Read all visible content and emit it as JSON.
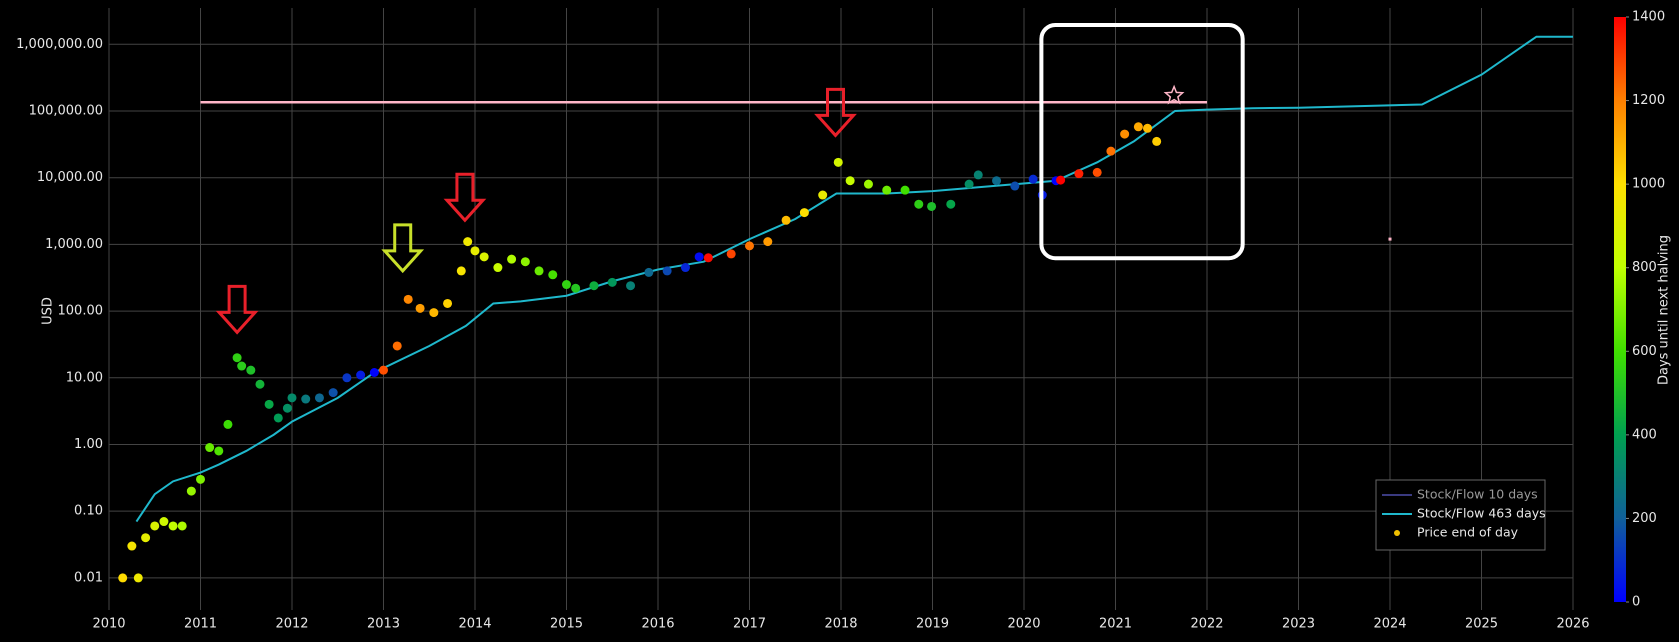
{
  "chart_data": {
    "type": "scatter",
    "y_label": "USD",
    "log_y": true,
    "grid": true,
    "legend": "bottom-right",
    "xlim": [
      2010,
      2026
    ],
    "xticks": [
      2010,
      2011,
      2012,
      2013,
      2014,
      2015,
      2016,
      2017,
      2018,
      2019,
      2020,
      2021,
      2022,
      2023,
      2024,
      2025,
      2026
    ],
    "ylim": [
      0.0033,
      3500000
    ],
    "yticks": [
      0.01,
      {
        "value": 0.1,
        "label": "0.10"
      },
      {
        "value": 1,
        "label": "1.00"
      },
      {
        "value": 10,
        "label": "10.00"
      },
      {
        "value": 100,
        "label": "100.00"
      },
      {
        "value": 1000,
        "label": "1,000.00"
      },
      {
        "value": 10000,
        "label": "10,000.00"
      },
      {
        "value": 100000,
        "label": "100,000.00"
      },
      {
        "value": 1000000,
        "label": "1,000,000.00"
      }
    ],
    "colorbar": {
      "title": "Days until next halving",
      "range": [
        0,
        1400
      ],
      "ticks": [
        0,
        200,
        400,
        600,
        800,
        1000,
        1200,
        1400
      ],
      "colorscale": [
        [
          0,
          "#0000ff"
        ],
        [
          200,
          "#10609a"
        ],
        [
          400,
          "#00a050"
        ],
        [
          600,
          "#40e000"
        ],
        [
          800,
          "#c0ff00"
        ],
        [
          1000,
          "#ffe000"
        ],
        [
          1200,
          "#ff8000"
        ],
        [
          1400,
          "#ff0000"
        ]
      ]
    },
    "series": [
      {
        "name": "Stock/Flow 10 days",
        "type": "line",
        "color": "#3a3a80",
        "x": [],
        "values": []
      },
      {
        "name": "Stock/Flow 463 days",
        "type": "line",
        "color": "#1fb8cc",
        "x": [
          2010.3,
          2010.5,
          2010.7,
          2011,
          2011.2,
          2011.5,
          2011.8,
          2012,
          2012.5,
          2012.9,
          2013.5,
          2013.9,
          2014.2,
          2014.5,
          2015,
          2015.5,
          2016,
          2016.5,
          2017,
          2017.5,
          2017.95,
          2018.5,
          2019,
          2019.5,
          2020.35,
          2020.8,
          2021.2,
          2021.65,
          2022,
          2022.5,
          2023,
          2024.35,
          2025,
          2025.6,
          2026
        ],
        "values": [
          0.07,
          0.18,
          0.28,
          0.38,
          0.5,
          0.8,
          1.4,
          2.2,
          5,
          12,
          30,
          60,
          130,
          140,
          170,
          280,
          420,
          550,
          1200,
          2400,
          5800,
          5800,
          6300,
          7200,
          9000,
          17000,
          35000,
          100000,
          105000,
          110000,
          112000,
          125000,
          350000,
          1300000,
          1300000
        ]
      },
      {
        "name": "Price end of day",
        "type": "scatter",
        "color": "#f0c000",
        "x": [
          2010.15,
          2010.32,
          2010.25,
          2010.4,
          2010.5,
          2010.6,
          2010.7,
          2010.8,
          2010.9,
          2011.0,
          2011.1,
          2011.2,
          2011.3,
          2011.4,
          2011.45,
          2011.55,
          2011.65,
          2011.75,
          2011.85,
          2011.95,
          2012.0,
          2012.15,
          2012.3,
          2012.45,
          2012.6,
          2012.75,
          2012.9,
          2013.0,
          2013.15,
          2013.27,
          2013.4,
          2013.55,
          2013.7,
          2013.85,
          2013.92,
          2014.0,
          2014.1,
          2014.25,
          2014.4,
          2014.55,
          2014.7,
          2014.85,
          2015.0,
          2015.1,
          2015.3,
          2015.5,
          2015.7,
          2015.9,
          2016.1,
          2016.3,
          2016.45,
          2016.55,
          2016.8,
          2017.0,
          2017.2,
          2017.4,
          2017.6,
          2017.8,
          2017.97,
          2018.1,
          2018.3,
          2018.5,
          2018.7,
          2018.85,
          2018.99,
          2019.2,
          2019.4,
          2019.5,
          2019.7,
          2019.9,
          2020.1,
          2020.2,
          2020.35,
          2020.4,
          2020.6,
          2020.8,
          2020.95,
          2021.1,
          2021.25,
          2021.35,
          2021.45
        ],
        "values": [
          0.01,
          0.01,
          0.03,
          0.04,
          0.06,
          0.07,
          0.06,
          0.06,
          0.2,
          0.3,
          0.9,
          0.8,
          2,
          20,
          15,
          13,
          8,
          4,
          2.5,
          3.5,
          5,
          4.8,
          5,
          6,
          10,
          11,
          12,
          13,
          30,
          150,
          110,
          95,
          130,
          400,
          1100,
          800,
          650,
          450,
          600,
          550,
          400,
          350,
          250,
          220,
          240,
          270,
          240,
          380,
          400,
          450,
          650,
          630,
          720,
          950,
          1100,
          2300,
          3000,
          5500,
          17000,
          9000,
          8000,
          6500,
          6500,
          4000,
          3700,
          4000,
          8000,
          11000,
          9000,
          7500,
          9500,
          5500,
          9000,
          9200,
          11500,
          12000,
          25000,
          45000,
          58000,
          55000,
          35000
        ],
        "color_values": [
          1008,
          946,
          972,
          917,
          880,
          844,
          807,
          770,
          734,
          697,
          661,
          624,
          588,
          551,
          533,
          497,
          460,
          423,
          387,
          350,
          332,
          277,
          223,
          168,
          113,
          58,
          4,
          1277,
          1230,
          1186,
          1139,
          1084,
          1029,
          974,
          949,
          920,
          883,
          829,
          774,
          719,
          664,
          609,
          555,
          518,
          445,
          372,
          299,
          226,
          153,
          80,
          26,
          1383,
          1292,
          1219,
          1146,
          1073,
          1000,
          927,
          865,
          818,
          745,
          672,
          599,
          544,
          493,
          416,
          343,
          307,
          234,
          161,
          88,
          58,
          4,
          1400,
          1351,
          1278,
          1223,
          1168,
          1114,
          1077,
          1040
        ]
      }
    ],
    "annotations": {
      "hline": {
        "y": 135000,
        "x": [
          2011,
          2022
        ],
        "color": "#ffb6c8"
      },
      "star": {
        "x": 2021.64,
        "y": 170000,
        "color": "#ffb6c8"
      },
      "dot": {
        "x": 2024,
        "y": 1200,
        "color": "#ffb6c8"
      },
      "box": {
        "x": [
          2020.19,
          2022.39
        ],
        "y": [
          620,
          1950000
        ],
        "color": "#ffffff"
      },
      "arrows": [
        {
          "x": 2011.4,
          "y": 48,
          "color": "#e8202a"
        },
        {
          "x": 2013.21,
          "y": 400,
          "color": "#c8e02a"
        },
        {
          "x": 2013.89,
          "y": 2300,
          "color": "#e8202a"
        },
        {
          "x": 2017.94,
          "y": 43000,
          "color": "#e8202a"
        }
      ]
    }
  }
}
